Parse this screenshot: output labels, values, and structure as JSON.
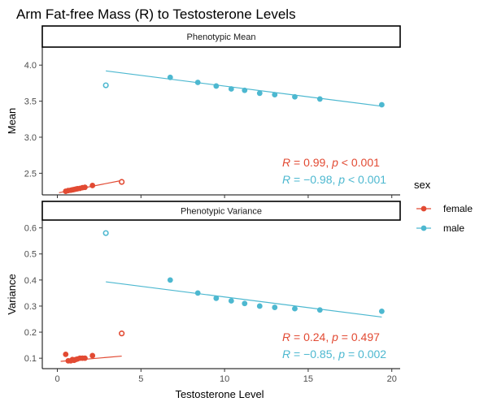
{
  "chart_data": {
    "type": "scatter",
    "title": "Arm Fat-free Mass (R) to Testosterone Levels",
    "xlabel": "Testosterone Level",
    "x_ticks": [
      0,
      5,
      10,
      15,
      20
    ],
    "xlim": [
      -0.9,
      20.5
    ],
    "colors": {
      "female": "#E24A33",
      "male": "#4DB8D0"
    },
    "legend": {
      "title": "sex",
      "position": "right",
      "entries": [
        "female",
        "male"
      ]
    },
    "grid": false,
    "panels": [
      {
        "strip": "Phenotypic Mean",
        "ylabel": "Mean",
        "ylim": [
          2.2,
          4.25
        ],
        "y_ticks": [
          2.5,
          3.0,
          3.5,
          4.0
        ],
        "y_tick_labels": [
          "2.5",
          "3.0",
          "3.5",
          "4.0"
        ],
        "series": [
          {
            "name": "female",
            "points": [
              [
                0.5,
                2.25
              ],
              [
                0.65,
                2.26
              ],
              [
                0.8,
                2.265
              ],
              [
                0.9,
                2.27
              ],
              [
                1.0,
                2.275
              ],
              [
                1.1,
                2.28
              ],
              [
                1.2,
                2.285
              ],
              [
                1.35,
                2.29
              ],
              [
                1.5,
                2.3
              ],
              [
                1.65,
                2.305
              ],
              [
                2.1,
                2.33
              ]
            ],
            "outliers": [
              [
                3.85,
                2.38
              ]
            ],
            "fit": [
              [
                0.1,
                2.23
              ],
              [
                3.85,
                2.4
              ]
            ],
            "annotation": {
              "r": "0.99",
              "p": "< 0.001"
            }
          },
          {
            "name": "male",
            "points": [
              [
                6.75,
                3.83
              ],
              [
                8.4,
                3.76
              ],
              [
                9.5,
                3.71
              ],
              [
                10.4,
                3.67
              ],
              [
                11.2,
                3.65
              ],
              [
                12.1,
                3.61
              ],
              [
                13.0,
                3.59
              ],
              [
                14.2,
                3.56
              ],
              [
                15.7,
                3.53
              ],
              [
                19.4,
                3.45
              ]
            ],
            "outliers": [
              [
                2.9,
                3.72
              ]
            ],
            "fit": [
              [
                2.9,
                3.92
              ],
              [
                19.4,
                3.43
              ]
            ],
            "annotation": {
              "r": "−0.98",
              "p": "< 0.001"
            }
          }
        ]
      },
      {
        "strip": "Phenotypic Variance",
        "ylabel": "Variance",
        "ylim": [
          0.06,
          0.63
        ],
        "y_ticks": [
          0.1,
          0.2,
          0.3,
          0.4,
          0.5,
          0.6
        ],
        "y_tick_labels": [
          "0.1",
          "0.2",
          "0.3",
          "0.4",
          "0.5",
          "0.6"
        ],
        "series": [
          {
            "name": "female",
            "points": [
              [
                0.5,
                0.115
              ],
              [
                0.65,
                0.09
              ],
              [
                0.8,
                0.09
              ],
              [
                0.9,
                0.095
              ],
              [
                1.0,
                0.092
              ],
              [
                1.1,
                0.095
              ],
              [
                1.2,
                0.097
              ],
              [
                1.35,
                0.1
              ],
              [
                1.5,
                0.1
              ],
              [
                1.65,
                0.1
              ],
              [
                2.1,
                0.11
              ]
            ],
            "outliers": [
              [
                3.85,
                0.195
              ]
            ],
            "fit": [
              [
                0.2,
                0.088
              ],
              [
                3.85,
                0.108
              ]
            ],
            "annotation": {
              "r": "0.24",
              "p": "= 0.497"
            }
          },
          {
            "name": "male",
            "points": [
              [
                6.75,
                0.4
              ],
              [
                8.4,
                0.35
              ],
              [
                9.5,
                0.33
              ],
              [
                10.4,
                0.32
              ],
              [
                11.2,
                0.31
              ],
              [
                12.1,
                0.3
              ],
              [
                13.0,
                0.295
              ],
              [
                14.2,
                0.29
              ],
              [
                15.7,
                0.285
              ],
              [
                19.4,
                0.28
              ]
            ],
            "outliers": [
              [
                2.9,
                0.58
              ]
            ],
            "fit": [
              [
                2.9,
                0.393
              ],
              [
                19.4,
                0.258
              ]
            ],
            "annotation": {
              "r": "−0.85",
              "p": "= 0.002"
            }
          }
        ]
      }
    ]
  }
}
